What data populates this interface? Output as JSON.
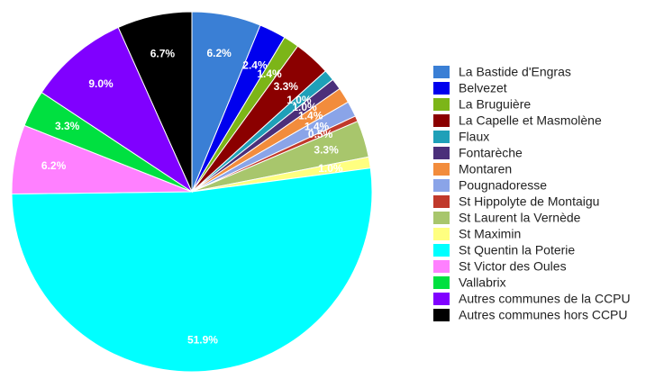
{
  "chart_data": {
    "type": "pie",
    "categories": [
      "La Bastide d'Engras",
      "Belvezet",
      "La Bruguière",
      "La Capelle et Masmolène",
      "Flaux",
      "Fontarèche",
      "Montaren",
      "Pougnadoresse",
      "St Hippolyte de Montaigu",
      "St Laurent la Vernède",
      "St Maximin",
      "St Quentin la Poterie",
      "St Victor des Oules",
      "Vallabrix",
      "Autres communes de la CCPU",
      "Autres communes hors CCPU"
    ],
    "values": [
      6.2,
      2.4,
      1.4,
      3.3,
      1.0,
      1.0,
      1.4,
      1.4,
      0.5,
      3.3,
      1.0,
      51.9,
      6.2,
      3.3,
      9.0,
      6.7
    ],
    "value_labels": [
      "6.2%",
      "2.4%",
      "1.4%",
      "3.3%",
      "1.0%",
      "1.0%",
      "1.4%",
      "1.4%",
      "0.5%",
      "3.3%",
      "1.0%",
      "51.9%",
      "6.2%",
      "3.3%",
      "9.0%",
      "6.7%"
    ],
    "colors": [
      "#3a7fd5",
      "#0000ee",
      "#7cb518",
      "#8b0000",
      "#1fa0b8",
      "#4b2f7a",
      "#f28c3c",
      "#8aa4e8",
      "#c0392b",
      "#a8c66c",
      "#ffff80",
      "#00ffff",
      "#ff80ff",
      "#00e040",
      "#8000ff",
      "#000000"
    ],
    "legend": "right"
  }
}
